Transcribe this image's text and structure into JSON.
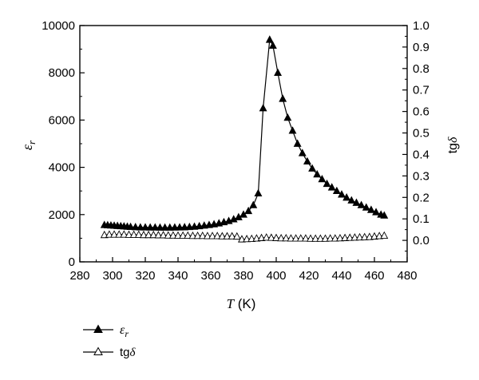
{
  "chart_data": {
    "type": "line",
    "xlabel": {
      "symbol": "T",
      "unit": " (K)"
    },
    "ylabel_left": {
      "symbol": "ε",
      "sub": "r"
    },
    "ylabel_right": {
      "text": "tg",
      "symbol": "δ"
    },
    "xlim": [
      280,
      480
    ],
    "ylim_left": [
      0,
      10000
    ],
    "ylim_right": [
      -0.1,
      1.0
    ],
    "x_ticks": [
      280,
      300,
      320,
      340,
      360,
      380,
      400,
      420,
      440,
      460,
      480
    ],
    "y_left_ticks": [
      0,
      2000,
      4000,
      6000,
      8000,
      10000
    ],
    "y_right_ticks": [
      "0.0",
      "0.1",
      "0.2",
      "0.3",
      "0.4",
      "0.5",
      "0.6",
      "0.7",
      "0.8",
      "0.9",
      "1.0"
    ],
    "grid": false,
    "legend_position": "bottom-left",
    "series": [
      {
        "name": "ε_r",
        "legend_symbol": "ε",
        "legend_sub": "r",
        "axis": "left",
        "marker": "filled-triangle",
        "color": "#000000",
        "x": [
          295,
          297,
          299,
          301,
          303,
          305,
          307,
          309,
          311,
          314,
          317,
          320,
          323,
          326,
          329,
          332,
          335,
          338,
          341,
          344,
          347,
          350,
          353,
          356,
          359,
          362,
          365,
          368,
          371,
          374,
          377,
          380,
          383,
          386,
          389,
          392,
          396,
          398,
          401,
          404,
          407,
          410,
          413,
          416,
          419,
          422,
          425,
          428,
          431,
          434,
          437,
          440,
          443,
          446,
          449,
          452,
          455,
          458,
          461,
          464,
          466
        ],
        "y": [
          1560,
          1550,
          1540,
          1530,
          1520,
          1510,
          1500,
          1490,
          1480,
          1470,
          1460,
          1460,
          1455,
          1455,
          1450,
          1450,
          1450,
          1455,
          1460,
          1465,
          1475,
          1490,
          1510,
          1535,
          1560,
          1590,
          1630,
          1680,
          1730,
          1800,
          1890,
          2000,
          2150,
          2400,
          2900,
          6500,
          9400,
          9150,
          8000,
          6900,
          6100,
          5550,
          5000,
          4600,
          4250,
          3950,
          3700,
          3500,
          3300,
          3150,
          3000,
          2850,
          2720,
          2600,
          2500,
          2400,
          2300,
          2200,
          2100,
          2000,
          1960
        ]
      },
      {
        "name": "tgδ",
        "legend_text": "tg",
        "legend_symbol": "δ",
        "axis": "right",
        "marker": "open-triangle",
        "color": "#000000",
        "x": [
          295,
          298,
          301,
          304,
          307,
          310,
          313,
          316,
          319,
          322,
          325,
          328,
          331,
          334,
          337,
          340,
          343,
          346,
          349,
          352,
          355,
          358,
          361,
          364,
          367,
          370,
          373,
          376,
          379,
          382,
          385,
          388,
          391,
          394,
          397,
          400,
          403,
          406,
          409,
          412,
          415,
          418,
          421,
          424,
          427,
          430,
          433,
          436,
          439,
          442,
          445,
          448,
          451,
          454,
          457,
          460,
          463,
          466
        ],
        "y": [
          0.025,
          0.027,
          0.027,
          0.027,
          0.027,
          0.026,
          0.026,
          0.026,
          0.025,
          0.025,
          0.025,
          0.024,
          0.024,
          0.023,
          0.023,
          0.022,
          0.022,
          0.022,
          0.021,
          0.021,
          0.021,
          0.02,
          0.02,
          0.02,
          0.019,
          0.019,
          0.019,
          0.018,
          0.005,
          0.006,
          0.007,
          0.009,
          0.011,
          0.013,
          0.012,
          0.011,
          0.01,
          0.01,
          0.009,
          0.009,
          0.009,
          0.009,
          0.008,
          0.008,
          0.008,
          0.008,
          0.009,
          0.009,
          0.01,
          0.011,
          0.012,
          0.013,
          0.014,
          0.015,
          0.016,
          0.018,
          0.02,
          0.022
        ]
      }
    ]
  }
}
